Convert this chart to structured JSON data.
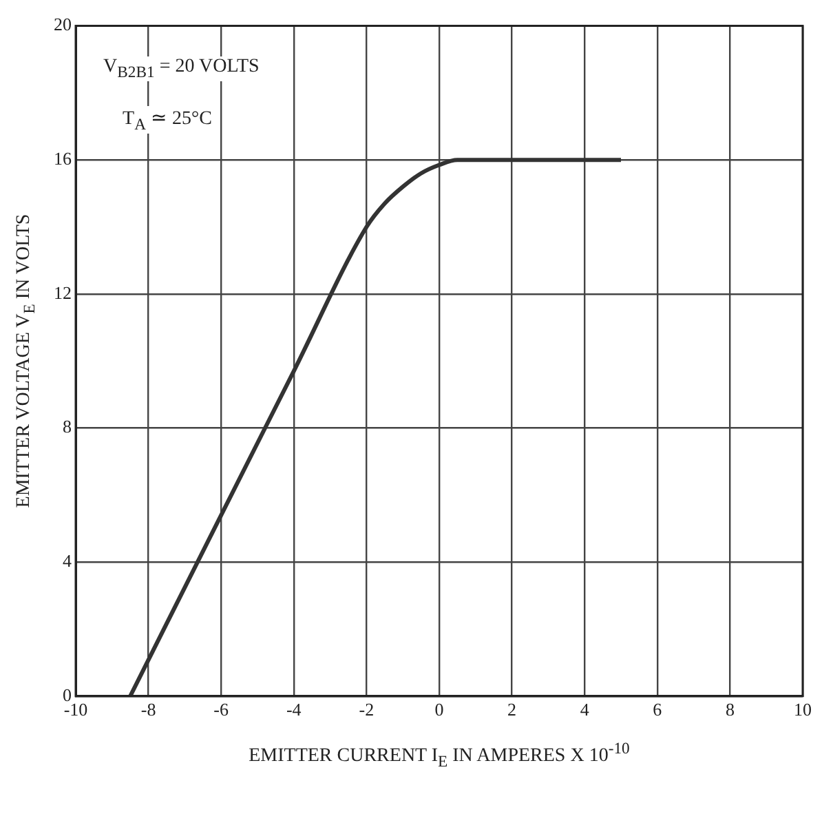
{
  "chart_data": {
    "type": "line",
    "xlabel": "EMITTER CURRENT I$_{E}$ IN AMPERES X 10$^{-10}$",
    "ylabel": "EMITTER VOLTAGE V$_{E}$ IN VOLTS",
    "annotations": [
      "V$_{B2B1}$ = 20 VOLTS",
      "T$_{A}$ ≃ 25°C"
    ],
    "series": [
      {
        "color": "#333333",
        "x": [
          -8.5,
          -6,
          -4,
          -2,
          -1.5,
          -1,
          -0.5,
          0,
          0.5,
          1,
          5
        ],
        "values": [
          0,
          5.4,
          9.7,
          14,
          14.7,
          15.2,
          15.6,
          15.85,
          16,
          16,
          16
        ]
      }
    ],
    "xlim": [
      -10,
      10
    ],
    "xticks": [
      -10,
      -8,
      -6,
      -4,
      -2,
      0,
      2,
      4,
      6,
      8,
      10
    ],
    "ylim": [
      0,
      20
    ],
    "yticks": [
      0,
      4,
      8,
      12,
      16,
      20
    ],
    "grid": true,
    "marker": "none",
    "line_style": "solid"
  }
}
